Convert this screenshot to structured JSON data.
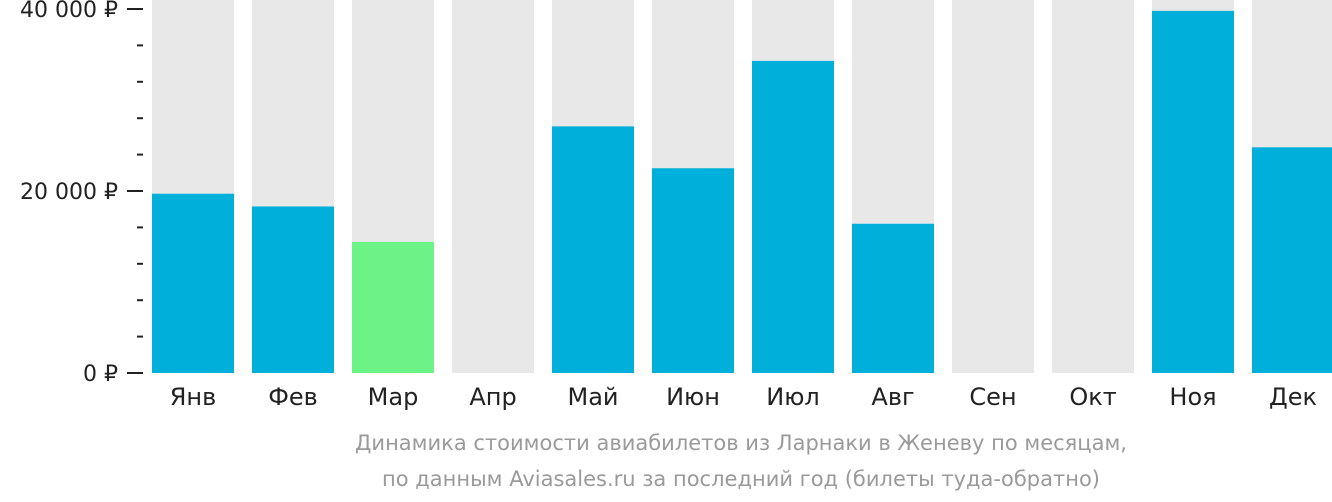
{
  "chart_data": {
    "type": "bar",
    "categories": [
      "Янв",
      "Фев",
      "Мар",
      "Апр",
      "Май",
      "Июн",
      "Июл",
      "Авг",
      "Сен",
      "Окт",
      "Ноя",
      "Дек"
    ],
    "values": [
      19700,
      18300,
      14400,
      null,
      27100,
      22500,
      34300,
      16400,
      null,
      null,
      39800,
      24800
    ],
    "highlight_category": "Мар",
    "ylim": [
      0,
      40000
    ],
    "y_ticks": [
      {
        "value": 0,
        "label": "0 ₽"
      },
      {
        "value": 20000,
        "label": "20 000 ₽"
      },
      {
        "value": 40000,
        "label": "40 000 ₽"
      }
    ],
    "minor_tick_step": 4000,
    "colors": {
      "bar": "#00b0db",
      "highlight": "#6cf385",
      "background_bar": "#e8e8e8",
      "axis": "#222222"
    },
    "caption": [
      "Динамика стоимости авиабилетов из Ларнаки в Женеву по месяцам,",
      "по данным Aviasales.ru за последний год (билеты туда-обратно)"
    ]
  }
}
